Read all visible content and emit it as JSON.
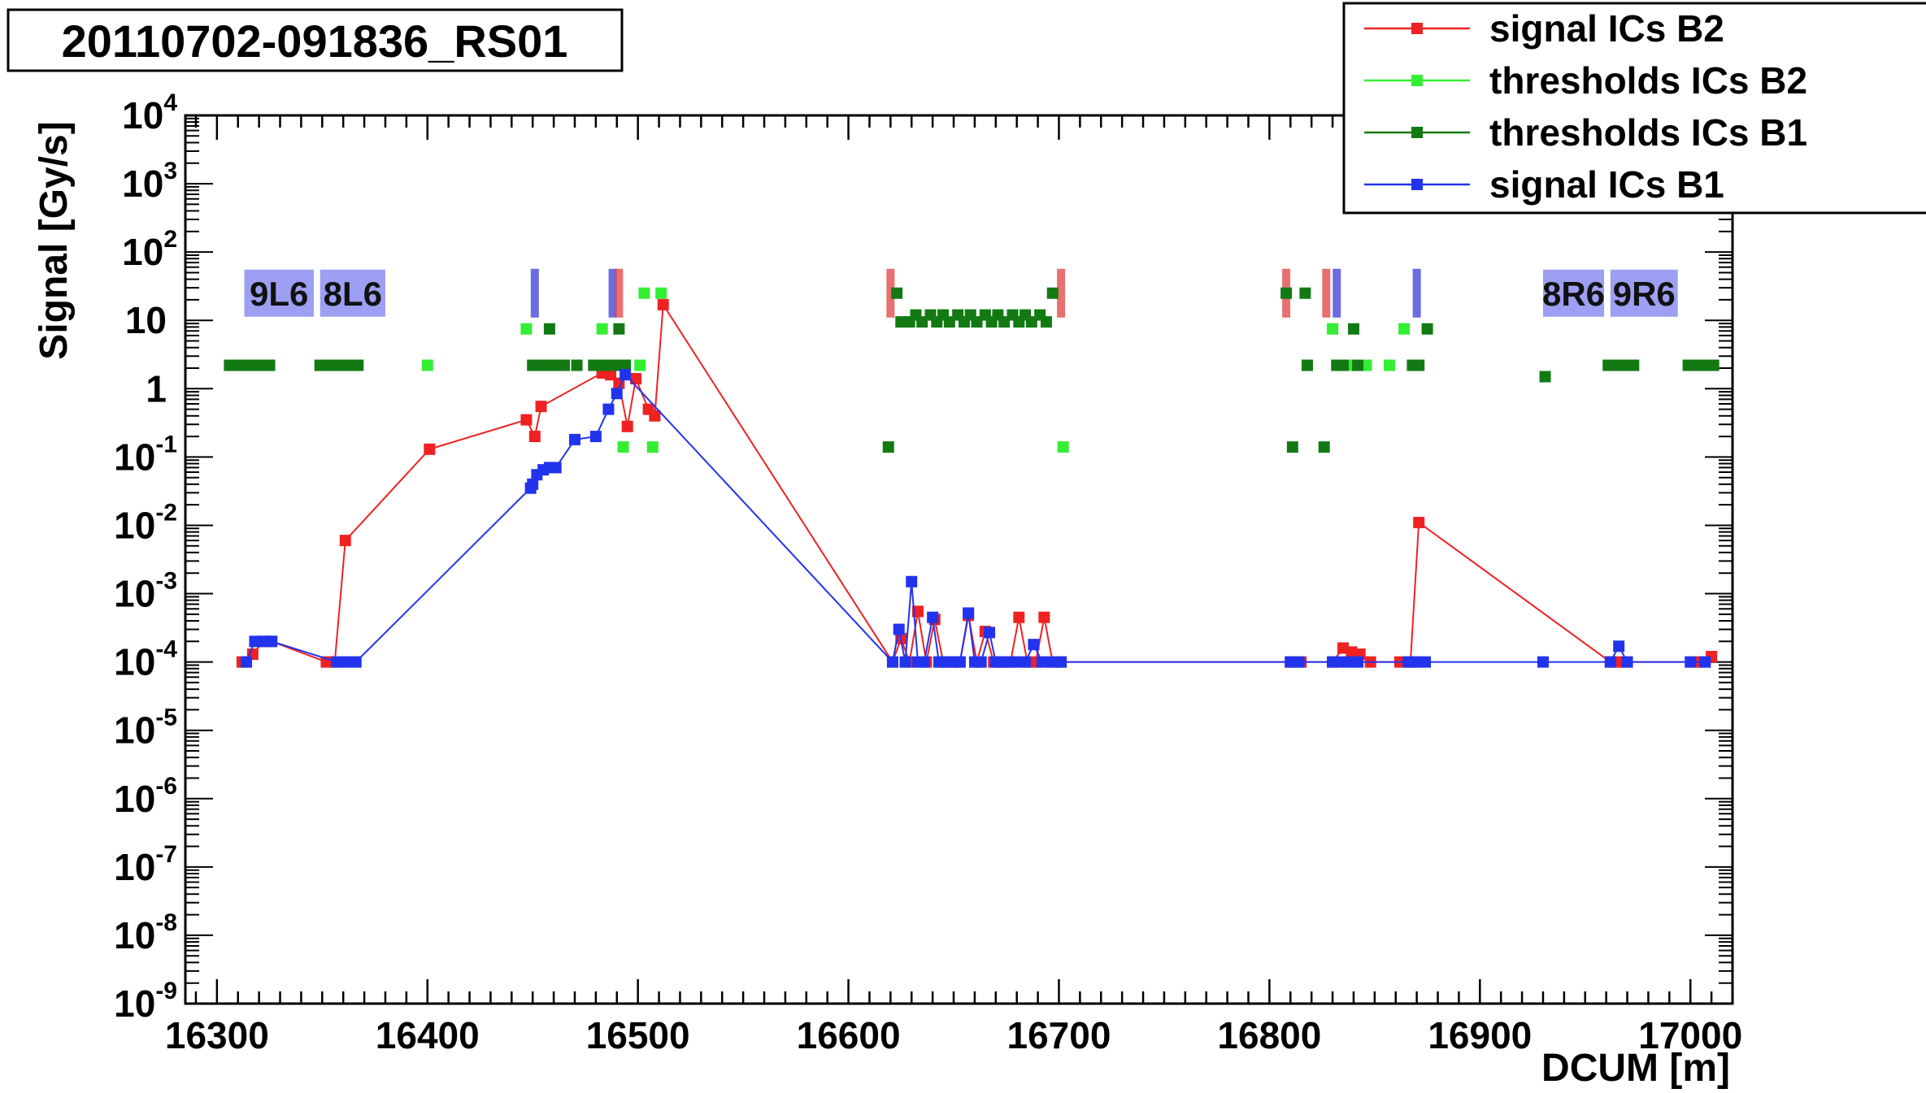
{
  "title": "20110702-091836_RS01",
  "chart_data": {
    "type": "scatter",
    "title": "20110702-091836_RS01",
    "xlabel": "DCUM [m]",
    "ylabel": "Signal [Gy/s]",
    "xlim": [
      16285,
      17020
    ],
    "ylim": [
      1e-09,
      10000
    ],
    "yscale": "log",
    "grid": false,
    "legend_position": "top-right",
    "x_ticks": [
      16300,
      16400,
      16500,
      16600,
      16700,
      16800,
      16900,
      17000
    ],
    "y_ticks": [
      {
        "base": "10",
        "exp": "4",
        "value": 10000
      },
      {
        "base": "10",
        "exp": "3",
        "value": 1000
      },
      {
        "base": "10",
        "exp": "2",
        "value": 100
      },
      {
        "base": "10",
        "exp": "",
        "value": 10
      },
      {
        "base": "1",
        "exp": "",
        "value": 1
      },
      {
        "base": "10",
        "exp": "-1",
        "value": 0.1
      },
      {
        "base": "10",
        "exp": "-2",
        "value": 0.01
      },
      {
        "base": "10",
        "exp": "-3",
        "value": 0.001
      },
      {
        "base": "10",
        "exp": "-4",
        "value": 0.0001
      },
      {
        "base": "10",
        "exp": "-5",
        "value": 1e-05
      },
      {
        "base": "10",
        "exp": "-6",
        "value": 1e-06
      },
      {
        "base": "10",
        "exp": "-7",
        "value": 1e-07
      },
      {
        "base": "10",
        "exp": "-8",
        "value": 1e-08
      },
      {
        "base": "10",
        "exp": "-9",
        "value": 1e-09
      }
    ],
    "region_labels": [
      {
        "text": "9L6",
        "x": 16322,
        "y": 25,
        "x_from": 16313,
        "x_to": 16346
      },
      {
        "text": "8L6",
        "x": 16357,
        "y": 25,
        "x_from": 16349,
        "x_to": 16380
      },
      {
        "text": "8R6",
        "x": 16943,
        "y": 25,
        "x_from": 16930,
        "x_to": 16959
      },
      {
        "text": "9R6",
        "x": 16978,
        "y": 25,
        "x_from": 16962,
        "x_to": 16994
      }
    ],
    "markers": [
      {
        "x": 16451,
        "y": 25,
        "color": "#3b3bd6"
      },
      {
        "x": 16488,
        "y": 25,
        "color": "#3b3bd6"
      },
      {
        "x": 16491,
        "y": 25,
        "color": "#e04040"
      },
      {
        "x": 16620,
        "y": 25,
        "color": "#e04040"
      },
      {
        "x": 16701,
        "y": 25,
        "color": "#e04040"
      },
      {
        "x": 16808,
        "y": 25,
        "color": "#e04040"
      },
      {
        "x": 16827,
        "y": 25,
        "color": "#e04040"
      },
      {
        "x": 16832,
        "y": 25,
        "color": "#3b3bd6"
      },
      {
        "x": 16870,
        "y": 25,
        "color": "#3b3bd6"
      }
    ],
    "series": [
      {
        "name": "signal ICs B2",
        "color": "#ee2222",
        "line": true,
        "points": [
          [
            16312,
            0.0001
          ],
          [
            16317,
            0.00013
          ],
          [
            16322,
            0.0002
          ],
          [
            16326,
            0.0002
          ],
          [
            16352,
            0.0001
          ],
          [
            16356,
            0.0001
          ],
          [
            16361,
            0.006
          ],
          [
            16401,
            0.13
          ],
          [
            16447,
            0.35
          ],
          [
            16451,
            0.2
          ],
          [
            16454,
            0.55
          ],
          [
            16483,
            1.7
          ],
          [
            16487,
            1.6
          ],
          [
            16491,
            1.2
          ],
          [
            16495,
            0.28
          ],
          [
            16499,
            1.4
          ],
          [
            16505,
            0.5
          ],
          [
            16508,
            0.4
          ],
          [
            16512,
            17
          ],
          [
            16621,
            0.0001
          ],
          [
            16625,
            0.00022
          ],
          [
            16629,
            0.0001
          ],
          [
            16633,
            0.00055
          ],
          [
            16637,
            0.0001
          ],
          [
            16641,
            0.00042
          ],
          [
            16645,
            0.0001
          ],
          [
            16649,
            0.0001
          ],
          [
            16653,
            0.0001
          ],
          [
            16657,
            0.00048
          ],
          [
            16661,
            0.0001
          ],
          [
            16665,
            0.00028
          ],
          [
            16669,
            0.0001
          ],
          [
            16673,
            0.0001
          ],
          [
            16677,
            0.0001
          ],
          [
            16681,
            0.00045
          ],
          [
            16685,
            0.0001
          ],
          [
            16689,
            0.0001
          ],
          [
            16693,
            0.00045
          ],
          [
            16697,
            0.0001
          ],
          [
            16701,
            0.0001
          ],
          [
            16810,
            0.0001
          ],
          [
            16815,
            0.0001
          ],
          [
            16830,
            0.0001
          ],
          [
            16835,
            0.00016
          ],
          [
            16839,
            0.00014
          ],
          [
            16843,
            0.00013
          ],
          [
            16848,
            0.0001
          ],
          [
            16862,
            0.0001
          ],
          [
            16867,
            0.0001
          ],
          [
            16871,
            0.011
          ],
          [
            16962,
            0.0001
          ],
          [
            16966,
            0.0001
          ],
          [
            16970,
            0.0001
          ],
          [
            17002,
            0.0001
          ],
          [
            17006,
            0.0001
          ],
          [
            17010,
            0.00012
          ]
        ]
      },
      {
        "name": "thresholds ICs B2",
        "color": "#33ee33",
        "line": false,
        "points": [
          [
            16400,
            2.2
          ],
          [
            16447,
            7.5
          ],
          [
            16483,
            7.5
          ],
          [
            16493,
            0.14
          ],
          [
            16501,
            2.2
          ],
          [
            16503,
            25
          ],
          [
            16507,
            0.14
          ],
          [
            16511,
            25
          ],
          [
            16702,
            0.14
          ],
          [
            16830,
            7.5
          ],
          [
            16838,
            2.2
          ],
          [
            16846,
            2.2
          ],
          [
            16857,
            2.2
          ],
          [
            16864,
            7.5
          ]
        ]
      },
      {
        "name": "thresholds ICs B1",
        "color": "#137a13",
        "line": false,
        "points": [
          [
            16306,
            2.2
          ],
          [
            16310,
            2.2
          ],
          [
            16313,
            2.2
          ],
          [
            16316,
            2.2
          ],
          [
            16319,
            2.2
          ],
          [
            16322,
            2.2
          ],
          [
            16325,
            2.2
          ],
          [
            16349,
            2.2
          ],
          [
            16352,
            2.2
          ],
          [
            16355,
            2.2
          ],
          [
            16358,
            2.2
          ],
          [
            16361,
            2.2
          ],
          [
            16364,
            2.2
          ],
          [
            16367,
            2.2
          ],
          [
            16450,
            2.2
          ],
          [
            16453,
            2.2
          ],
          [
            16456,
            2.2
          ],
          [
            16458,
            7.5
          ],
          [
            16460,
            2.2
          ],
          [
            16465,
            2.2
          ],
          [
            16471,
            2.2
          ],
          [
            16479,
            2.2
          ],
          [
            16482,
            2.2
          ],
          [
            16485,
            2.2
          ],
          [
            16488,
            2.2
          ],
          [
            16491,
            2.2
          ],
          [
            16494,
            2.2
          ],
          [
            16491,
            7.5
          ],
          [
            16619,
            0.14
          ],
          [
            16623,
            25
          ],
          [
            16625,
            9.5
          ],
          [
            16629,
            9.5
          ],
          [
            16632,
            12
          ],
          [
            16635,
            9.5
          ],
          [
            16639,
            12
          ],
          [
            16642,
            9.5
          ],
          [
            16645,
            12
          ],
          [
            16648,
            9.5
          ],
          [
            16652,
            12
          ],
          [
            16655,
            9.5
          ],
          [
            16658,
            12
          ],
          [
            16661,
            9.5
          ],
          [
            16665,
            12
          ],
          [
            16668,
            9.5
          ],
          [
            16671,
            12
          ],
          [
            16674,
            9.5
          ],
          [
            16678,
            12
          ],
          [
            16681,
            9.5
          ],
          [
            16684,
            12
          ],
          [
            16687,
            9.5
          ],
          [
            16691,
            12
          ],
          [
            16694,
            9.5
          ],
          [
            16697,
            25
          ],
          [
            16808,
            25
          ],
          [
            16811,
            0.14
          ],
          [
            16817,
            25
          ],
          [
            16818,
            2.2
          ],
          [
            16826,
            0.14
          ],
          [
            16832,
            2.2
          ],
          [
            16835,
            2.2
          ],
          [
            16840,
            7.5
          ],
          [
            16842,
            2.2
          ],
          [
            16868,
            2.2
          ],
          [
            16871,
            2.2
          ],
          [
            16875,
            7.5
          ],
          [
            16931,
            1.5
          ],
          [
            16961,
            2.2
          ],
          [
            16964,
            2.2
          ],
          [
            16967,
            2.2
          ],
          [
            16970,
            2.2
          ],
          [
            16973,
            2.2
          ],
          [
            16999,
            2.2
          ],
          [
            17002,
            2.2
          ],
          [
            17005,
            2.2
          ],
          [
            17008,
            2.2
          ],
          [
            17011,
            2.2
          ]
        ]
      },
      {
        "name": "signal ICs B1",
        "color": "#2233ee",
        "line": true,
        "points": [
          [
            16314,
            0.0001
          ],
          [
            16318,
            0.0002
          ],
          [
            16322,
            0.0002
          ],
          [
            16326,
            0.0002
          ],
          [
            16357,
            0.0001
          ],
          [
            16362,
            0.0001
          ],
          [
            16366,
            0.0001
          ],
          [
            16449,
            0.035
          ],
          [
            16450,
            0.04
          ],
          [
            16452,
            0.055
          ],
          [
            16455,
            0.065
          ],
          [
            16458,
            0.07
          ],
          [
            16461,
            0.07
          ],
          [
            16470,
            0.18
          ],
          [
            16480,
            0.2
          ],
          [
            16486,
            0.5
          ],
          [
            16490,
            0.85
          ],
          [
            16494,
            1.6
          ],
          [
            16621,
            0.0001
          ],
          [
            16624,
            0.0003
          ],
          [
            16627,
            0.0001
          ],
          [
            16630,
            0.0015
          ],
          [
            16633,
            0.0001
          ],
          [
            16636,
            0.0001
          ],
          [
            16640,
            0.00045
          ],
          [
            16643,
            0.0001
          ],
          [
            16646,
            0.0001
          ],
          [
            16650,
            0.0001
          ],
          [
            16653,
            0.0001
          ],
          [
            16657,
            0.00052
          ],
          [
            16660,
            0.0001
          ],
          [
            16663,
            0.0001
          ],
          [
            16667,
            0.00027
          ],
          [
            16670,
            0.0001
          ],
          [
            16673,
            0.0001
          ],
          [
            16677,
            0.0001
          ],
          [
            16680,
            0.0001
          ],
          [
            16684,
            0.0001
          ],
          [
            16688,
            0.00018
          ],
          [
            16692,
            0.0001
          ],
          [
            16697,
            0.0001
          ],
          [
            16701,
            0.0001
          ],
          [
            16810,
            0.0001
          ],
          [
            16814,
            0.0001
          ],
          [
            16830,
            0.0001
          ],
          [
            16834,
            0.0001
          ],
          [
            16838,
            0.0001
          ],
          [
            16842,
            0.0001
          ],
          [
            16866,
            0.0001
          ],
          [
            16870,
            0.0001
          ],
          [
            16874,
            0.0001
          ],
          [
            16930,
            0.0001
          ],
          [
            16962,
            0.0001
          ],
          [
            16966,
            0.00017
          ],
          [
            16970,
            0.0001
          ],
          [
            17000,
            0.0001
          ],
          [
            17007,
            0.0001
          ]
        ]
      }
    ]
  }
}
